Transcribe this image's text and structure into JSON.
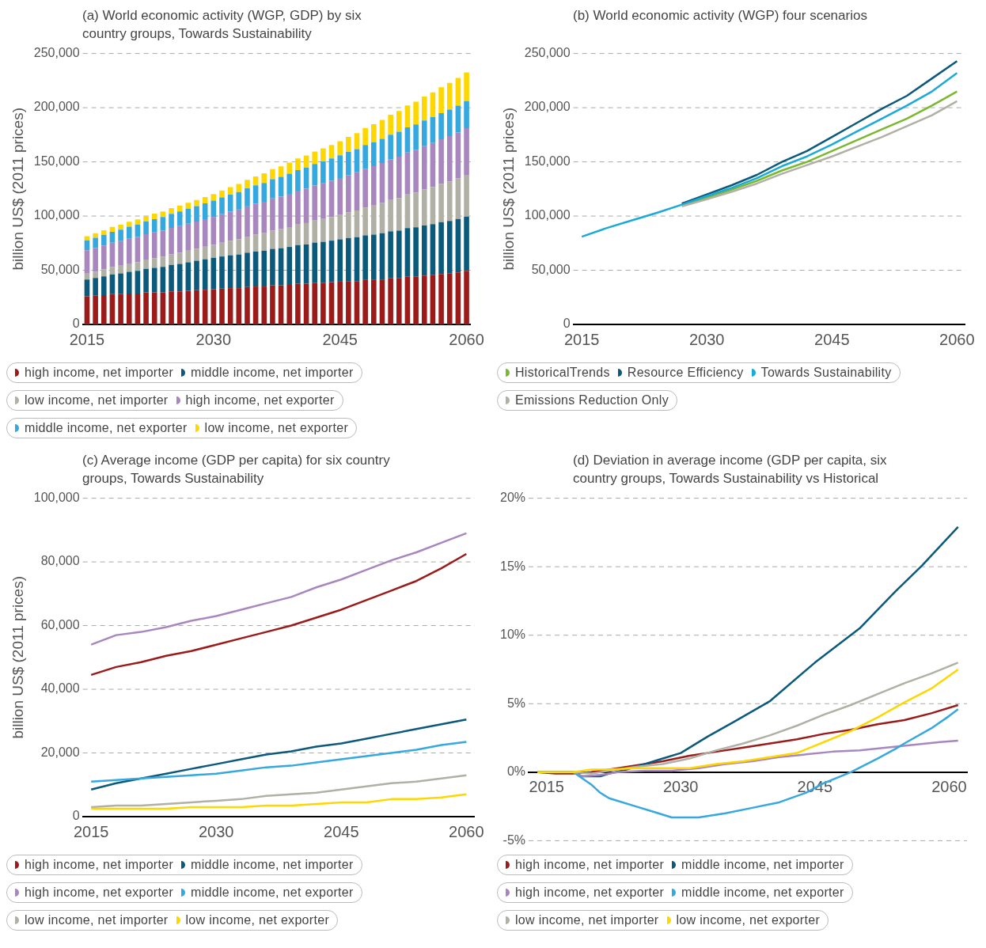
{
  "chart_data": [
    {
      "type": "bar",
      "stacked": true,
      "title": "(a) World economic activity (WGP, GDP) by six country groups, Towards Sustainability",
      "ylabel": "billion US$ (2011 prices)",
      "grid": "y",
      "legend": "bottom",
      "categories": [
        "2015",
        null,
        null,
        null,
        null,
        null,
        null,
        null,
        null,
        null,
        null,
        null,
        null,
        null,
        null,
        "2030",
        null,
        null,
        null,
        null,
        null,
        null,
        null,
        null,
        null,
        null,
        null,
        null,
        null,
        null,
        "2045",
        null,
        null,
        null,
        null,
        null,
        null,
        null,
        null,
        null,
        null,
        null,
        null,
        null,
        null,
        "2060"
      ],
      "ylim": [
        0,
        250000
      ],
      "yticks": [
        {
          "value": 0,
          "label": "0"
        },
        {
          "value": 50000,
          "label": "50,000"
        },
        {
          "value": 100000,
          "label": "100,000"
        },
        {
          "value": 150000,
          "label": "150,000"
        },
        {
          "value": 200000,
          "label": "200,000"
        },
        {
          "value": 250000,
          "label": "250,000"
        }
      ],
      "series": [
        {
          "name": "high income, net importer",
          "color": "#9b1b1b",
          "values": [
            26000,
            26500,
            27000,
            28000,
            28000,
            28500,
            28500,
            29500,
            29500,
            29500,
            30500,
            30500,
            31000,
            31500,
            32000,
            32500,
            33000,
            33500,
            33500,
            34500,
            35000,
            35000,
            36000,
            36000,
            36500,
            37500,
            37500,
            38500,
            38500,
            39000,
            39500,
            40000,
            40000,
            41000,
            41000,
            41500,
            42500,
            42500,
            44000,
            44000,
            45000,
            45500,
            46500,
            47000,
            48000,
            49500
          ]
        },
        {
          "name": "middle income, net importer",
          "color": "#0b5a7c",
          "values": [
            15500,
            16400,
            17300,
            18200,
            19100,
            20000,
            20900,
            21800,
            22700,
            23600,
            24500,
            25400,
            26300,
            27200,
            28100,
            29000,
            29700,
            30300,
            31000,
            31700,
            32300,
            33000,
            33700,
            34300,
            35000,
            35700,
            36300,
            37000,
            37700,
            38300,
            39000,
            39700,
            40500,
            41200,
            41900,
            42700,
            43400,
            44100,
            44900,
            45600,
            46300,
            47100,
            47800,
            48500,
            49300,
            50000
          ]
        },
        {
          "name": "low income, net importer",
          "color": "#b0b0a4",
          "values": [
            5500,
            5900,
            6400,
            6800,
            7200,
            7700,
            8100,
            8500,
            9000,
            9400,
            9800,
            10300,
            10700,
            11100,
            11600,
            12000,
            12700,
            13400,
            14100,
            14800,
            15500,
            16200,
            16900,
            17600,
            18300,
            19000,
            19700,
            20400,
            21100,
            21800,
            22500,
            23600,
            24600,
            25700,
            26800,
            27800,
            28900,
            30000,
            31000,
            32100,
            33200,
            34200,
            35300,
            36400,
            37400,
            38500
          ]
        },
        {
          "name": "high income, net exporter",
          "color": "#a887bf",
          "values": [
            21500,
            21800,
            22100,
            22300,
            22600,
            22900,
            23200,
            23500,
            23700,
            24000,
            24300,
            24600,
            24900,
            25100,
            25400,
            25700,
            26300,
            26800,
            27400,
            27900,
            28500,
            29000,
            29600,
            30100,
            30700,
            31200,
            31800,
            32300,
            32900,
            33400,
            34000,
            34600,
            35200,
            35800,
            36400,
            37000,
            37600,
            38200,
            38800,
            39400,
            40000,
            40600,
            41200,
            41800,
            42400,
            43000
          ]
        },
        {
          "name": "middle income, net exporter",
          "color": "#35a8e0",
          "values": [
            9000,
            9400,
            9800,
            10200,
            10600,
            11000,
            11400,
            11800,
            12200,
            12600,
            13000,
            13400,
            13800,
            14200,
            14600,
            15000,
            15400,
            15800,
            16200,
            16600,
            17000,
            17400,
            17800,
            18200,
            18600,
            19000,
            19400,
            19800,
            20200,
            20600,
            21000,
            21300,
            21500,
            21800,
            22100,
            22300,
            22600,
            22900,
            23100,
            23400,
            23700,
            23900,
            24200,
            24500,
            24700,
            25000
          ]
        },
        {
          "name": "low income, net exporter",
          "color": "#ffd700",
          "values": [
            4000,
            4100,
            4300,
            4400,
            4500,
            4700,
            4800,
            4900,
            5100,
            5200,
            5300,
            5500,
            5600,
            5700,
            5900,
            6000,
            6500,
            6900,
            7400,
            7900,
            8300,
            8800,
            9300,
            9700,
            10200,
            10700,
            11100,
            11600,
            12100,
            12500,
            13000,
            13900,
            14800,
            15700,
            16600,
            17500,
            18400,
            19300,
            20200,
            21100,
            22000,
            22900,
            23800,
            24700,
            25600,
            26500
          ]
        }
      ]
    },
    {
      "type": "line",
      "title": "(b) World economic activity (WGP) four scenarios",
      "ylabel": "billion US$ (2011 prices)",
      "grid": "y",
      "legend": "bottom",
      "x": [
        2015,
        2018,
        2021,
        2024,
        2027,
        2030,
        2033,
        2036,
        2039,
        2042,
        2045,
        2048,
        2051,
        2054,
        2057,
        2060
      ],
      "xlim": [
        2014,
        2061
      ],
      "xticks": [
        2015,
        2030,
        2045,
        2060
      ],
      "ylim": [
        0,
        250000
      ],
      "yticks": [
        {
          "value": 0,
          "label": "0"
        },
        {
          "value": 50000,
          "label": "50,000"
        },
        {
          "value": 100000,
          "label": "100,000"
        },
        {
          "value": 150000,
          "label": "150,000"
        },
        {
          "value": 200000,
          "label": "200,000"
        },
        {
          "value": 250000,
          "label": "250,000"
        }
      ],
      "series": [
        {
          "name": "HistoricalTrends",
          "color": "#7ab82e",
          "values": [
            null,
            null,
            null,
            null,
            110000,
            117000,
            124500,
            132500,
            142000,
            150000,
            160000,
            170000,
            180000,
            190000,
            202000,
            215000
          ]
        },
        {
          "name": "Resource Efficiency",
          "color": "#0b5a7c",
          "values": [
            null,
            null,
            null,
            null,
            111500,
            120000,
            128500,
            138000,
            150000,
            160000,
            173000,
            186000,
            199000,
            211000,
            227000,
            243000
          ]
        },
        {
          "name": "Towards Sustainability",
          "color": "#1aaad8",
          "values": [
            81000,
            89000,
            96000,
            103000,
            110500,
            118500,
            126000,
            135000,
            146000,
            155000,
            166000,
            178000,
            190000,
            202000,
            215000,
            232000
          ]
        },
        {
          "name": "Emissions Reduction Only",
          "color": "#b0b0a4",
          "values": [
            null,
            null,
            null,
            null,
            109000,
            115500,
            122500,
            130000,
            139000,
            147000,
            155000,
            164000,
            173000,
            183000,
            193000,
            206000
          ]
        }
      ]
    },
    {
      "type": "line",
      "title": "(c) Average income (GDP per capita) for six country groups, Towards Sustainability",
      "ylabel": "billion US$ (2011 prices)",
      "grid": "y",
      "legend": "bottom",
      "x": [
        2015,
        2018,
        2021,
        2024,
        2027,
        2030,
        2033,
        2036,
        2039,
        2042,
        2045,
        2048,
        2051,
        2054,
        2057,
        2060
      ],
      "xlim": [
        2014,
        2061
      ],
      "xticks": [
        2015,
        2030,
        2045,
        2060
      ],
      "ylim": [
        0,
        100000
      ],
      "yticks": [
        {
          "value": 0,
          "label": "0"
        },
        {
          "value": 20000,
          "label": "20,000"
        },
        {
          "value": 40000,
          "label": "40,000"
        },
        {
          "value": 60000,
          "label": "60,000"
        },
        {
          "value": 80000,
          "label": "80,000"
        },
        {
          "value": 100000,
          "label": "100,000"
        }
      ],
      "series": [
        {
          "name": "high income, net importer",
          "color": "#9b1b1b",
          "values": [
            44500,
            47000,
            48500,
            50500,
            52000,
            54000,
            56000,
            58000,
            60000,
            62500,
            65000,
            68000,
            71000,
            74000,
            78000,
            82500
          ]
        },
        {
          "name": "middle income, net importer",
          "color": "#0b5a7c",
          "values": [
            8500,
            10500,
            12000,
            13500,
            15000,
            16500,
            18000,
            19500,
            20500,
            22000,
            23000,
            24500,
            26000,
            27500,
            29000,
            30500
          ]
        },
        {
          "name": "high income, net exporter",
          "color": "#a887bf",
          "values": [
            54000,
            57000,
            58000,
            59500,
            61500,
            63000,
            65000,
            67000,
            69000,
            72000,
            74500,
            77500,
            80500,
            83000,
            86000,
            89000
          ]
        },
        {
          "name": "middle income, net exporter",
          "color": "#35a8e0",
          "values": [
            11000,
            11500,
            12000,
            12500,
            13000,
            13500,
            14500,
            15500,
            16000,
            17000,
            18000,
            19000,
            20000,
            21000,
            22500,
            23500
          ]
        },
        {
          "name": "low income, net importer",
          "color": "#b0b0a4",
          "values": [
            3000,
            3500,
            3500,
            4000,
            4500,
            5000,
            5500,
            6500,
            7000,
            7500,
            8500,
            9500,
            10500,
            11000,
            12000,
            13000
          ]
        },
        {
          "name": "low income, net exporter",
          "color": "#ffd700",
          "values": [
            2500,
            2500,
            2500,
            2500,
            3000,
            3000,
            3000,
            3500,
            3500,
            4000,
            4500,
            4500,
            5500,
            5500,
            6000,
            7000
          ]
        }
      ]
    },
    {
      "type": "line",
      "title": "(d) Deviation in average income (GDP per capita, six country groups, Towards Sustainability vs Historical",
      "grid": "y",
      "legend": "bottom",
      "xlim": [
        2013,
        2062
      ],
      "xticks": [
        2015,
        2030,
        2045,
        2060
      ],
      "ylim": [
        -5,
        20
      ],
      "yticks": [
        {
          "value": -5,
          "label": "-5%"
        },
        {
          "value": 0,
          "label": "0%"
        },
        {
          "value": 5,
          "label": "5%"
        },
        {
          "value": 10,
          "label": "10%"
        },
        {
          "value": 15,
          "label": "15%"
        },
        {
          "value": 20,
          "label": "20%"
        }
      ],
      "series": [
        {
          "name": "high income, net importer",
          "color": "#9b1b1b",
          "x": [
            2014,
            2016,
            2018,
            2020,
            2022,
            2025,
            2028,
            2031,
            2034,
            2037,
            2040,
            2043,
            2046,
            2049,
            2052,
            2055,
            2058,
            2061
          ],
          "values": [
            0,
            -0.1,
            -0.1,
            0,
            0.2,
            0.5,
            0.8,
            1.2,
            1.5,
            1.8,
            2.1,
            2.4,
            2.8,
            3.1,
            3.5,
            3.8,
            4.3,
            4.9
          ]
        },
        {
          "name": "middle income, net importer",
          "color": "#0b5a7c",
          "x": [
            2014,
            2018,
            2019,
            2021,
            2022,
            2024,
            2026,
            2028,
            2030,
            2033,
            2036,
            2040,
            2045,
            2050,
            2054,
            2057,
            2061
          ],
          "values": [
            0,
            0,
            -0.3,
            -0.3,
            -0.1,
            0.2,
            0.6,
            1.0,
            1.4,
            2.6,
            3.7,
            5.2,
            8.0,
            10.5,
            13.2,
            15.1,
            17.9
          ]
        },
        {
          "name": "high income, net exporter",
          "color": "#a887bf",
          "x": [
            2014,
            2018,
            2019,
            2021,
            2023,
            2026,
            2029,
            2032,
            2035,
            2038,
            2041,
            2044,
            2047,
            2050,
            2053,
            2056,
            2059,
            2061
          ],
          "values": [
            0,
            0,
            -0.3,
            -0.2,
            0,
            0.1,
            0.1,
            0.3,
            0.6,
            0.8,
            1.1,
            1.3,
            1.5,
            1.6,
            1.8,
            2.0,
            2.2,
            2.3
          ]
        },
        {
          "name": "middle income, net exporter",
          "color": "#35a8e0",
          "x": [
            2014,
            2018,
            2020,
            2021,
            2022,
            2025,
            2027,
            2029,
            2032,
            2035,
            2038,
            2041,
            2044,
            2046,
            2049,
            2052,
            2054,
            2055,
            2058,
            2060,
            2061
          ],
          "values": [
            0,
            0,
            -0.9,
            -1.5,
            -1.9,
            -2.5,
            -2.9,
            -3.3,
            -3.3,
            -3.0,
            -2.6,
            -2.2,
            -1.5,
            -0.8,
            0,
            1.0,
            1.7,
            2.1,
            3.2,
            4.1,
            4.6
          ]
        },
        {
          "name": "low income, net importer",
          "color": "#b0b0a4",
          "x": [
            2014,
            2018,
            2020,
            2022,
            2025,
            2028,
            2031,
            2034,
            2037,
            2040,
            2043,
            2046,
            2049,
            2052,
            2055,
            2058,
            2061
          ],
          "values": [
            0,
            0,
            -0.1,
            0.1,
            0.4,
            0.6,
            1.0,
            1.6,
            2.1,
            2.7,
            3.4,
            4.2,
            4.9,
            5.7,
            6.5,
            7.2,
            8.0
          ]
        },
        {
          "name": "low income, net exporter",
          "color": "#ffd700",
          "x": [
            2014,
            2018,
            2020,
            2022,
            2025,
            2028,
            2031,
            2034,
            2037,
            2040,
            2043,
            2046,
            2049,
            2052,
            2055,
            2058,
            2061
          ],
          "values": [
            0,
            0,
            0.2,
            0.2,
            0.3,
            0.3,
            0.3,
            0.6,
            0.8,
            1.1,
            1.4,
            2.2,
            3.0,
            4.0,
            5.1,
            6.1,
            7.5
          ]
        }
      ]
    }
  ]
}
